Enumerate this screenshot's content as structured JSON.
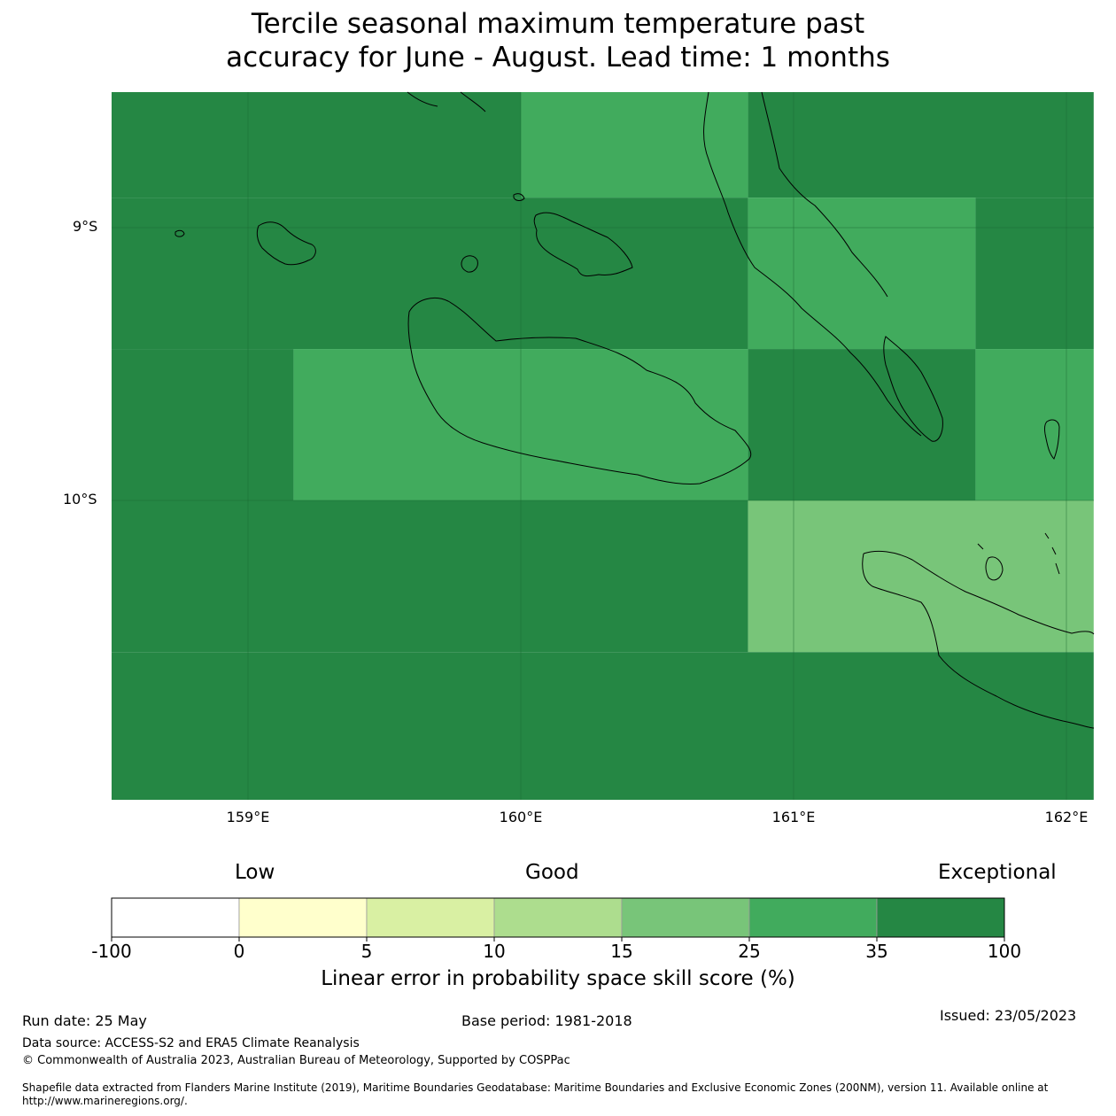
{
  "title": {
    "line1": "Tercile seasonal maximum temperature past",
    "line2": "accuracy for June - August. Lead time: 1 months"
  },
  "map": {
    "lat_labels": [
      "9°S",
      "10°S"
    ],
    "lon_labels": [
      "159°E",
      "160°E",
      "161°E",
      "162°E"
    ],
    "lat_lines": [
      -9,
      -10
    ],
    "lon_lines": [
      159,
      160,
      161,
      162
    ],
    "extent": {
      "lon": [
        158.5,
        162.1
      ],
      "lat": [
        -11.1,
        -8.5
      ]
    },
    "grid_cells": [
      {
        "lon": [
          158.5,
          160.0
        ],
        "lat": [
          -8.5,
          -8.89
        ],
        "category": "35-100"
      },
      {
        "lon": [
          160.0,
          160.833
        ],
        "lat": [
          -8.5,
          -8.89
        ],
        "category": "25-35"
      },
      {
        "lon": [
          160.833,
          162.1
        ],
        "lat": [
          -8.5,
          -8.89
        ],
        "category": "35-100"
      },
      {
        "lon": [
          158.5,
          160.833
        ],
        "lat": [
          -8.89,
          -9.445
        ],
        "category": "35-100"
      },
      {
        "lon": [
          160.833,
          161.667
        ],
        "lat": [
          -8.89,
          -9.445
        ],
        "category": "25-35"
      },
      {
        "lon": [
          161.667,
          162.1
        ],
        "lat": [
          -8.89,
          -9.445
        ],
        "category": "35-100"
      },
      {
        "lon": [
          158.5,
          159.167
        ],
        "lat": [
          -9.445,
          -10.0
        ],
        "category": "35-100"
      },
      {
        "lon": [
          159.167,
          160.833
        ],
        "lat": [
          -9.445,
          -10.0
        ],
        "category": "25-35"
      },
      {
        "lon": [
          160.833,
          161.667
        ],
        "lat": [
          -9.445,
          -10.0
        ],
        "category": "35-100"
      },
      {
        "lon": [
          161.667,
          162.1
        ],
        "lat": [
          -9.445,
          -10.0
        ],
        "category": "25-35"
      },
      {
        "lon": [
          158.5,
          160.833
        ],
        "lat": [
          -10.0,
          -10.556
        ],
        "category": "35-100"
      },
      {
        "lon": [
          160.833,
          162.1
        ],
        "lat": [
          -10.0,
          -10.556
        ],
        "category": "15-25"
      },
      {
        "lon": [
          158.5,
          162.1
        ],
        "lat": [
          -10.556,
          -11.1
        ],
        "category": "35-100"
      }
    ]
  },
  "colors": {
    "35-100": "#258744",
    "25-35": "#41ab5d",
    "15-25": "#78c579",
    "10-15": "#addd8e",
    "5-10": "#d9f0a3",
    "0-5": "#ffffcc",
    "-100-0": "#ffffff",
    "coastline": "#000000",
    "gridline": "#1a6630"
  },
  "legend": {
    "categories": [
      "Low",
      "Good",
      "Exceptional"
    ],
    "ticks": [
      "-100",
      "0",
      "5",
      "10",
      "15",
      "25",
      "35",
      "100"
    ],
    "bins": [
      {
        "from": "-100",
        "to": "0",
        "color": "#ffffff"
      },
      {
        "from": "0",
        "to": "5",
        "color": "#ffffcc"
      },
      {
        "from": "5",
        "to": "10",
        "color": "#d9f0a3"
      },
      {
        "from": "10",
        "to": "15",
        "color": "#addd8e"
      },
      {
        "from": "15",
        "to": "25",
        "color": "#78c579"
      },
      {
        "from": "25",
        "to": "35",
        "color": "#41ab5d"
      },
      {
        "from": "35",
        "to": "100",
        "color": "#258744"
      }
    ],
    "label": "Linear error in probability space skill score (%)"
  },
  "footer": {
    "run_date": "Run date: 25 May",
    "base_period": "Base period: 1981-2018",
    "issued": "Issued: 23/05/2023",
    "data_source": "Data source: ACCESS-S2 and ERA5 Climate Reanalysis",
    "copyright": "© Commonwealth of Australia 2023, Australian Bureau of Meteorology, Supported by COSPPac",
    "shapefile_1": "Shapefile data extracted from Flanders Marine Institute (2019), Maritime Boundaries Geodatabase: Maritime Boundaries and Exclusive Economic Zones (200NM), version 11. Available online at",
    "shapefile_2": "http://www.marineregions.org/."
  }
}
